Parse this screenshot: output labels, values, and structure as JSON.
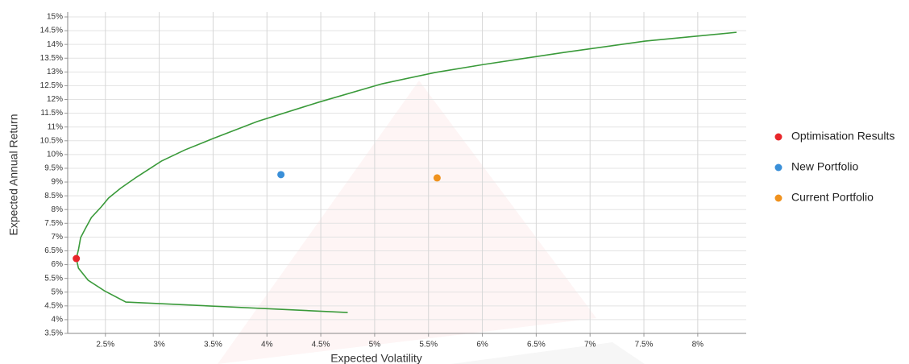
{
  "chart_data": {
    "type": "scatter",
    "x_label": "Expected Volatility",
    "y_label": "Expected Annual Return",
    "xlim": [
      2.15,
      8.45
    ],
    "ylim": [
      3.5,
      15
    ],
    "xticks": [
      {
        "value": 2.5,
        "label": "2.5%"
      },
      {
        "value": 3,
        "label": "3%"
      },
      {
        "value": 3.5,
        "label": "3.5%"
      },
      {
        "value": 4,
        "label": "4%"
      },
      {
        "value": 4.5,
        "label": "4.5%"
      },
      {
        "value": 5,
        "label": "5%"
      },
      {
        "value": 5.5,
        "label": "5.5%"
      },
      {
        "value": 6,
        "label": "6%"
      },
      {
        "value": 6.5,
        "label": "6.5%"
      },
      {
        "value": 7,
        "label": "7%"
      },
      {
        "value": 7.5,
        "label": "7.5%"
      },
      {
        "value": 8,
        "label": "8%"
      }
    ],
    "yticks": [
      {
        "value": 3.5,
        "label": "3.5%"
      },
      {
        "value": 4,
        "label": "4%"
      },
      {
        "value": 4.5,
        "label": "4.5%"
      },
      {
        "value": 5,
        "label": "5%"
      },
      {
        "value": 5.5,
        "label": "5.5%"
      },
      {
        "value": 6,
        "label": "6%"
      },
      {
        "value": 6.5,
        "label": "6.5%"
      },
      {
        "value": 7,
        "label": "7%"
      },
      {
        "value": 7.5,
        "label": "7.5%"
      },
      {
        "value": 8,
        "label": "8%"
      },
      {
        "value": 8.5,
        "label": "8.5%"
      },
      {
        "value": 9,
        "label": "9%"
      },
      {
        "value": 9.5,
        "label": "9.5%"
      },
      {
        "value": 10,
        "label": "10%"
      },
      {
        "value": 10.5,
        "label": "10.5%"
      },
      {
        "value": 11,
        "label": "11%"
      },
      {
        "value": 11.5,
        "label": "11.5%"
      },
      {
        "value": 12,
        "label": "12%"
      },
      {
        "value": 12.5,
        "label": "12.5%"
      },
      {
        "value": 13,
        "label": "13%"
      },
      {
        "value": 13.5,
        "label": "13.5%"
      },
      {
        "value": 14,
        "label": "14%"
      },
      {
        "value": 14.5,
        "label": "14.5%"
      },
      {
        "value": 15,
        "label": "15%"
      }
    ],
    "grid": true,
    "legend": "right",
    "frontier": {
      "color": "#3a9a3a",
      "x": [
        4.75,
        2.69,
        2.49,
        2.34,
        2.25,
        2.23,
        2.25,
        2.27,
        2.31,
        2.37,
        2.46,
        2.53,
        2.64,
        2.79,
        3.02,
        3.24,
        3.5,
        3.91,
        4.48,
        5.07,
        5.56,
        6.01,
        6.76,
        7.51,
        8.36
      ],
      "values": [
        4.26,
        4.64,
        5.05,
        5.43,
        5.87,
        6.22,
        6.54,
        6.98,
        7.28,
        7.71,
        8.09,
        8.42,
        8.77,
        9.18,
        9.76,
        10.17,
        10.58,
        11.2,
        11.9,
        12.57,
        12.98,
        13.27,
        13.71,
        14.12,
        14.44
      ]
    },
    "series": [
      {
        "name": "Optimisation Results",
        "color": "#e8262a",
        "x": [
          2.23
        ],
        "values": [
          6.22
        ]
      },
      {
        "name": "New Portfolio",
        "color": "#3a8fd8",
        "x": [
          4.13
        ],
        "values": [
          9.27
        ]
      },
      {
        "name": "Current Portfolio",
        "color": "#f0921e",
        "x": [
          5.58
        ],
        "values": [
          9.15
        ]
      }
    ]
  }
}
